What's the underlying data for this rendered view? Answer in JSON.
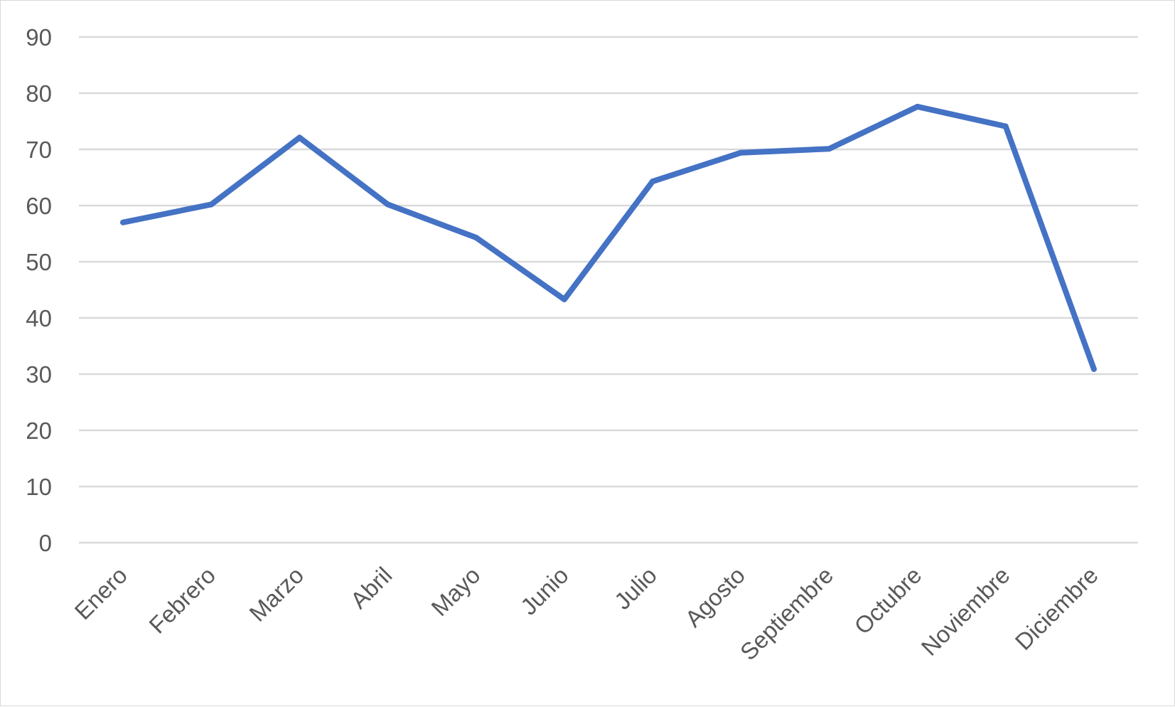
{
  "chart_data": {
    "type": "line",
    "title": "",
    "xlabel": "",
    "ylabel": "",
    "categories": [
      "Enero",
      "Febrero",
      "Marzo",
      "Abril",
      "Mayo",
      "Junio",
      "Julio",
      "Agosto",
      "Septiembre",
      "Octubre",
      "Noviembre",
      "Diciembre"
    ],
    "series": [
      {
        "color": "#4472c4",
        "values": [
          57,
          60.2,
          72.1,
          60.2,
          54.3,
          43.3,
          64.3,
          69.4,
          70.1,
          77.6,
          74.1,
          30.9
        ]
      }
    ],
    "ylim": [
      0,
      90
    ],
    "yticks": [
      0,
      10,
      20,
      30,
      40,
      50,
      60,
      70,
      80,
      90
    ],
    "grid": "horizontal",
    "legend": "none"
  }
}
